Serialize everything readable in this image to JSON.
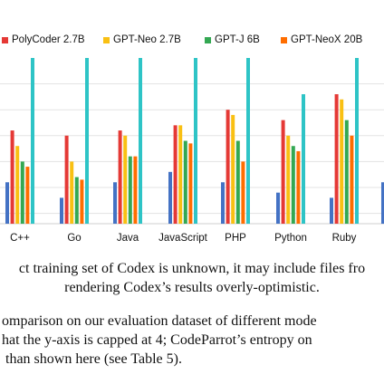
{
  "chart_data": {
    "type": "bar",
    "categories": [
      "C++",
      "Go",
      "Java",
      "JavaScript",
      "PHP",
      "Python",
      "Ruby"
    ],
    "series": [
      {
        "name": "",
        "color": "#4472c4",
        "values": [
          1.6,
          1.3,
          1.6,
          1.8,
          1.6,
          1.4,
          1.3
        ]
      },
      {
        "name": "PolyCoder 2.7B",
        "color": "#e53935",
        "values": [
          2.6,
          2.5,
          2.6,
          2.7,
          3.0,
          2.8,
          3.3
        ]
      },
      {
        "name": "GPT-Neo 2.7B",
        "color": "#f9c013",
        "values": [
          2.3,
          2.0,
          2.5,
          2.7,
          2.9,
          2.5,
          3.2
        ]
      },
      {
        "name": "GPT-J 6B",
        "color": "#34a853",
        "values": [
          2.0,
          1.7,
          2.1,
          2.4,
          2.4,
          2.3,
          2.8
        ]
      },
      {
        "name": "GPT-NeoX 20B",
        "color": "#ff6d00",
        "values": [
          1.9,
          1.65,
          2.1,
          2.35,
          2.0,
          2.2,
          2.5
        ]
      },
      {
        "name": "",
        "color": "#2ec4c6",
        "values": [
          4.0,
          4.0,
          4.0,
          4.0,
          4.0,
          3.3,
          4.0
        ]
      }
    ],
    "ylim": [
      0.8,
      4.0
    ],
    "gridlines": [
      1.0,
      1.5,
      2.0,
      2.5,
      3.0,
      3.5
    ],
    "grid": true,
    "legend_position": "top"
  },
  "caption_figure": [
    "ct training set of Codex is unknown, it may include files fro",
    "rendering Codex’s results overly-optimistic."
  ],
  "caption_body": [
    "omparison on our evaluation dataset of different mode",
    "hat the y-axis is capped at 4; CodeParrot’s entropy on",
    " than shown here (see Table 5)."
  ]
}
